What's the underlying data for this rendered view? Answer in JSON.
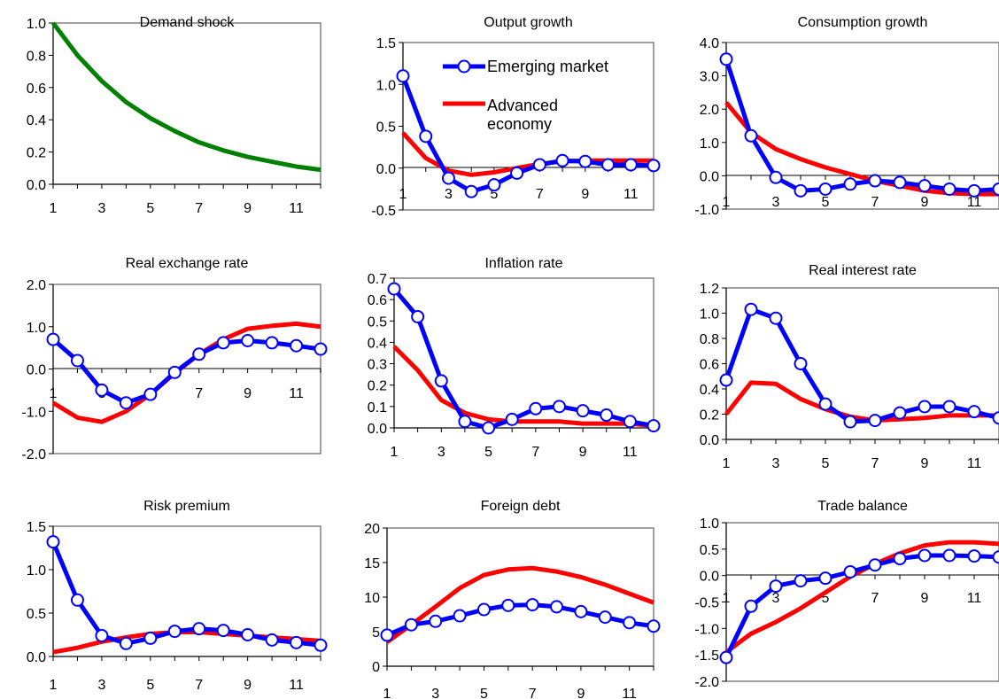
{
  "chart_data": [
    {
      "type": "line",
      "title": "Demand shock",
      "x": [
        1,
        2,
        3,
        4,
        5,
        6,
        7,
        8,
        9,
        10,
        11,
        12
      ],
      "ylim": [
        0,
        1
      ],
      "yticks": [
        "0.0",
        "0.2",
        "0.4",
        "0.6",
        "0.8",
        "1.0"
      ],
      "xticks": [
        "1",
        "3",
        "5",
        "7",
        "9",
        "11"
      ],
      "series": [
        {
          "values": [
            1.0,
            0.8,
            0.64,
            0.51,
            0.41,
            0.33,
            0.26,
            0.21,
            0.17,
            0.14,
            0.11,
            0.09
          ],
          "color": "#008000",
          "markers": false
        }
      ]
    },
    {
      "type": "line",
      "title": "Output growth",
      "x": [
        1,
        2,
        3,
        4,
        5,
        6,
        7,
        8,
        9,
        10,
        11,
        12
      ],
      "ylim": [
        -0.5,
        1.5
      ],
      "yticks": [
        "-0.5",
        "0.0",
        "0.5",
        "1.0",
        "1.5"
      ],
      "xticks": [
        "1",
        "3",
        "5",
        "7",
        "9",
        "11"
      ],
      "series": [
        {
          "name": "Emerging market",
          "values": [
            1.1,
            0.38,
            -0.12,
            -0.28,
            -0.2,
            -0.06,
            0.04,
            0.09,
            0.08,
            0.04,
            0.04,
            0.03
          ],
          "color": "#0000ff",
          "markers": true
        },
        {
          "name": "Advanced economy",
          "values": [
            0.42,
            0.12,
            -0.03,
            -0.08,
            -0.05,
            0.0,
            0.05,
            0.08,
            0.09,
            0.09,
            0.09,
            0.09
          ],
          "color": "#ff0000",
          "markers": false
        }
      ],
      "legend": {
        "entries": [
          "Emerging market",
          "Advanced economy"
        ]
      }
    },
    {
      "type": "line",
      "title": "Consumption growth",
      "x": [
        1,
        2,
        3,
        4,
        5,
        6,
        7,
        8,
        9,
        10,
        11,
        12
      ],
      "ylim": [
        -1,
        4
      ],
      "yticks": [
        "-1.0",
        "0.0",
        "1.0",
        "2.0",
        "3.0",
        "4.0"
      ],
      "xticks": [
        "1",
        "3",
        "5",
        "7",
        "9",
        "11"
      ],
      "series": [
        {
          "values": [
            3.5,
            1.2,
            -0.05,
            -0.45,
            -0.4,
            -0.25,
            -0.15,
            -0.2,
            -0.3,
            -0.4,
            -0.45,
            -0.4
          ],
          "color": "#0000ff",
          "markers": true
        },
        {
          "values": [
            2.2,
            1.3,
            0.8,
            0.5,
            0.25,
            0.05,
            -0.15,
            -0.3,
            -0.45,
            -0.52,
            -0.55,
            -0.55
          ],
          "color": "#ff0000",
          "markers": false
        }
      ]
    },
    {
      "type": "line",
      "title": "Real exchange rate",
      "x": [
        1,
        2,
        3,
        4,
        5,
        6,
        7,
        8,
        9,
        10,
        11,
        12
      ],
      "ylim": [
        -2,
        2
      ],
      "yticks": [
        "-2.0",
        "-1.0",
        "0.0",
        "1.0",
        "2.0"
      ],
      "xticks": [
        "1",
        "3",
        "5",
        "7",
        "9",
        "11"
      ],
      "series": [
        {
          "values": [
            0.7,
            0.2,
            -0.5,
            -0.8,
            -0.6,
            -0.08,
            0.35,
            0.62,
            0.67,
            0.62,
            0.55,
            0.47
          ],
          "color": "#0000ff",
          "markers": true
        },
        {
          "values": [
            -0.8,
            -1.15,
            -1.25,
            -1.0,
            -0.6,
            -0.1,
            0.35,
            0.7,
            0.95,
            1.02,
            1.07,
            1.0
          ],
          "color": "#ff0000",
          "markers": false
        }
      ]
    },
    {
      "type": "line",
      "title": "Inflation rate",
      "x": [
        1,
        2,
        3,
        4,
        5,
        6,
        7,
        8,
        9,
        10,
        11,
        12
      ],
      "ylim": [
        0,
        0.7
      ],
      "yticks": [
        "0.0",
        "0.1",
        "0.2",
        "0.3",
        "0.4",
        "0.5",
        "0.6",
        "0.7"
      ],
      "xticks": [
        "1",
        "3",
        "5",
        "7",
        "9",
        "11"
      ],
      "series": [
        {
          "values": [
            0.65,
            0.52,
            0.22,
            0.03,
            0.0,
            0.04,
            0.09,
            0.1,
            0.08,
            0.06,
            0.03,
            0.01
          ],
          "color": "#0000ff",
          "markers": true
        },
        {
          "values": [
            0.38,
            0.27,
            0.13,
            0.07,
            0.04,
            0.03,
            0.03,
            0.03,
            0.02,
            0.02,
            0.02,
            0.01
          ],
          "color": "#ff0000",
          "markers": false
        }
      ]
    },
    {
      "type": "line",
      "title": "Real interest rate",
      "x": [
        1,
        2,
        3,
        4,
        5,
        6,
        7,
        8,
        9,
        10,
        11,
        12
      ],
      "ylim": [
        0,
        1.2
      ],
      "yticks": [
        "0.0",
        "0.2",
        "0.4",
        "0.6",
        "0.8",
        "1.0",
        "1.2"
      ],
      "xticks": [
        "1",
        "3",
        "5",
        "7",
        "9",
        "11"
      ],
      "series": [
        {
          "values": [
            0.47,
            1.03,
            0.96,
            0.6,
            0.28,
            0.14,
            0.15,
            0.21,
            0.26,
            0.26,
            0.22,
            0.17
          ],
          "color": "#0000ff",
          "markers": true
        },
        {
          "values": [
            0.2,
            0.45,
            0.44,
            0.32,
            0.24,
            0.18,
            0.15,
            0.16,
            0.17,
            0.19,
            0.19,
            0.19
          ],
          "color": "#ff0000",
          "markers": false
        }
      ]
    },
    {
      "type": "line",
      "title": "Risk premium",
      "x": [
        1,
        2,
        3,
        4,
        5,
        6,
        7,
        8,
        9,
        10,
        11,
        12
      ],
      "ylim": [
        0,
        1.5
      ],
      "yticks": [
        "0.0",
        "0.5",
        "1.0",
        "1.5"
      ],
      "xticks": [
        "1",
        "3",
        "5",
        "7",
        "9",
        "11"
      ],
      "series": [
        {
          "values": [
            1.32,
            0.65,
            0.24,
            0.15,
            0.21,
            0.29,
            0.32,
            0.3,
            0.25,
            0.19,
            0.16,
            0.13
          ],
          "color": "#0000ff",
          "markers": true
        },
        {
          "values": [
            0.05,
            0.1,
            0.17,
            0.22,
            0.26,
            0.28,
            0.28,
            0.26,
            0.24,
            0.22,
            0.2,
            0.18
          ],
          "color": "#ff0000",
          "markers": false
        }
      ]
    },
    {
      "type": "line",
      "title": "Foreign debt",
      "x": [
        1,
        2,
        3,
        4,
        5,
        6,
        7,
        8,
        9,
        10,
        11,
        12
      ],
      "ylim": [
        0,
        20
      ],
      "yticks": [
        "0",
        "5",
        "10",
        "15",
        "20"
      ],
      "xticks": [
        "1",
        "3",
        "5",
        "7",
        "9",
        "11"
      ],
      "series": [
        {
          "values": [
            4.5,
            6.0,
            6.5,
            7.3,
            8.2,
            8.8,
            8.9,
            8.6,
            7.9,
            7.1,
            6.3,
            5.8
          ],
          "color": "#0000ff",
          "markers": true
        },
        {
          "values": [
            3.5,
            6.0,
            8.6,
            11.3,
            13.2,
            14.0,
            14.2,
            13.7,
            12.9,
            11.8,
            10.5,
            9.2
          ],
          "color": "#ff0000",
          "markers": false
        }
      ]
    },
    {
      "type": "line",
      "title": "Trade balance",
      "x": [
        1,
        2,
        3,
        4,
        5,
        6,
        7,
        8,
        9,
        10,
        11,
        12
      ],
      "ylim": [
        -2,
        1
      ],
      "yticks": [
        "-2.0",
        "-1.5",
        "-1.0",
        "-0.5",
        "0.0",
        "0.5",
        "1.0"
      ],
      "xticks": [
        "1",
        "3",
        "5",
        "7",
        "9",
        "11"
      ],
      "series": [
        {
          "values": [
            -1.55,
            -0.58,
            -0.2,
            -0.1,
            -0.05,
            0.07,
            0.2,
            0.32,
            0.38,
            0.38,
            0.37,
            0.35
          ],
          "color": "#0000ff",
          "markers": true
        },
        {
          "values": [
            -1.45,
            -1.1,
            -0.88,
            -0.62,
            -0.32,
            -0.02,
            0.22,
            0.42,
            0.57,
            0.63,
            0.63,
            0.6
          ],
          "color": "#ff0000",
          "markers": false
        }
      ]
    }
  ]
}
